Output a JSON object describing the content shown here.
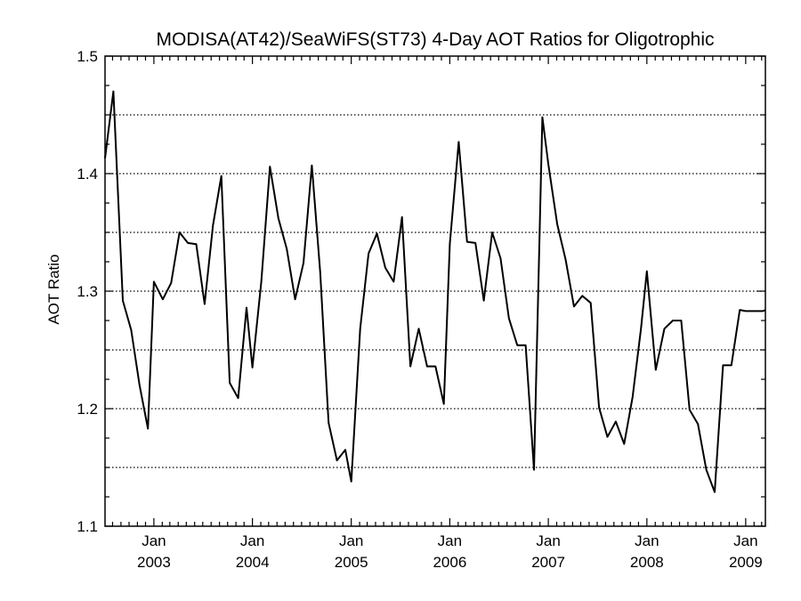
{
  "chart_data": {
    "type": "line",
    "title": "MODISA(AT42)/SeaWiFS(ST73) 4-Day AOT Ratios for Oligotrophic",
    "xlabel": "",
    "ylabel": "AOT Ratio",
    "ylim": [
      1.1,
      1.5
    ],
    "y_ticks": [
      {
        "value": 1.1,
        "label": "1.1"
      },
      {
        "value": 1.2,
        "label": "1.2"
      },
      {
        "value": 1.3,
        "label": "1.3"
      },
      {
        "value": 1.4,
        "label": "1.4"
      },
      {
        "value": 1.5,
        "label": "1.5"
      }
    ],
    "y_minor_step": 0.025,
    "y_gridlines": [
      1.15,
      1.2,
      1.25,
      1.3,
      1.35,
      1.4,
      1.45
    ],
    "xlim": [
      "2002-07-04",
      "2009-03-15"
    ],
    "x_ticks": [
      {
        "date": "2003-01-01",
        "month": "Jan",
        "year": "2003"
      },
      {
        "date": "2004-01-01",
        "month": "Jan",
        "year": "2004"
      },
      {
        "date": "2005-01-01",
        "month": "Jan",
        "year": "2005"
      },
      {
        "date": "2006-01-01",
        "month": "Jan",
        "year": "2006"
      },
      {
        "date": "2007-01-01",
        "month": "Jan",
        "year": "2007"
      },
      {
        "date": "2008-01-01",
        "month": "Jan",
        "year": "2008"
      },
      {
        "date": "2009-01-01",
        "month": "Jan",
        "year": "2009"
      }
    ],
    "grid": "horizontal dotted",
    "line_color": "#000000",
    "series": [
      {
        "x": [
          "2002-07-04",
          "2002-08-04",
          "2002-09-08",
          "2002-10-09",
          "2002-11-09",
          "2002-12-10",
          "2003-01-01",
          "2003-02-03",
          "2003-03-06",
          "2003-04-06",
          "2003-05-07",
          "2003-06-07",
          "2003-07-08",
          "2003-08-08",
          "2003-09-08",
          "2003-10-09",
          "2003-11-09",
          "2003-12-10",
          "2004-01-01",
          "2004-02-03",
          "2004-03-06",
          "2004-04-06",
          "2004-05-07",
          "2004-06-07",
          "2004-07-08",
          "2004-08-08",
          "2004-09-08",
          "2004-10-09",
          "2004-11-09",
          "2004-12-10",
          "2005-01-01",
          "2005-02-03",
          "2005-03-06",
          "2005-04-06",
          "2005-05-07",
          "2005-06-07",
          "2005-07-08",
          "2005-08-08",
          "2005-09-08",
          "2005-10-09",
          "2005-11-09",
          "2005-12-10",
          "2006-01-01",
          "2006-02-03",
          "2006-03-06",
          "2006-04-06",
          "2006-05-07",
          "2006-06-07",
          "2006-07-08",
          "2006-08-08",
          "2006-09-08",
          "2006-10-09",
          "2006-11-09",
          "2006-12-10",
          "2007-01-01",
          "2007-02-03",
          "2007-03-06",
          "2007-04-06",
          "2007-05-07",
          "2007-06-07",
          "2007-07-08",
          "2007-08-08",
          "2007-09-08",
          "2007-10-09",
          "2007-11-09",
          "2007-12-10",
          "2008-01-01",
          "2008-02-03",
          "2008-03-06",
          "2008-04-06",
          "2008-05-07",
          "2008-06-07",
          "2008-07-08",
          "2008-08-08",
          "2008-09-08",
          "2008-10-09",
          "2008-11-09",
          "2008-12-10",
          "2009-01-01",
          "2009-02-03",
          "2009-03-06",
          "2009-03-15"
        ],
        "y": [
          1.413,
          1.47,
          1.292,
          1.267,
          1.22,
          1.183,
          1.308,
          1.293,
          1.307,
          1.35,
          1.341,
          1.34,
          1.289,
          1.356,
          1.398,
          1.222,
          1.209,
          1.286,
          1.235,
          1.308,
          1.406,
          1.362,
          1.336,
          1.293,
          1.324,
          1.407,
          1.316,
          1.188,
          1.156,
          1.165,
          1.138,
          1.268,
          1.332,
          1.349,
          1.32,
          1.308,
          1.363,
          1.236,
          1.268,
          1.236,
          1.236,
          1.204,
          1.34,
          1.427,
          1.342,
          1.341,
          1.292,
          1.35,
          1.328,
          1.277,
          1.254,
          1.254,
          1.148,
          1.448,
          1.408,
          1.357,
          1.327,
          1.287,
          1.296,
          1.29,
          1.201,
          1.176,
          1.189,
          1.17,
          1.21,
          1.268,
          1.317,
          1.233,
          1.268,
          1.275,
          1.275,
          1.199,
          1.187,
          1.148,
          1.129,
          1.237,
          1.237,
          1.284,
          1.283,
          1.283,
          1.283,
          1.284
        ]
      }
    ]
  }
}
